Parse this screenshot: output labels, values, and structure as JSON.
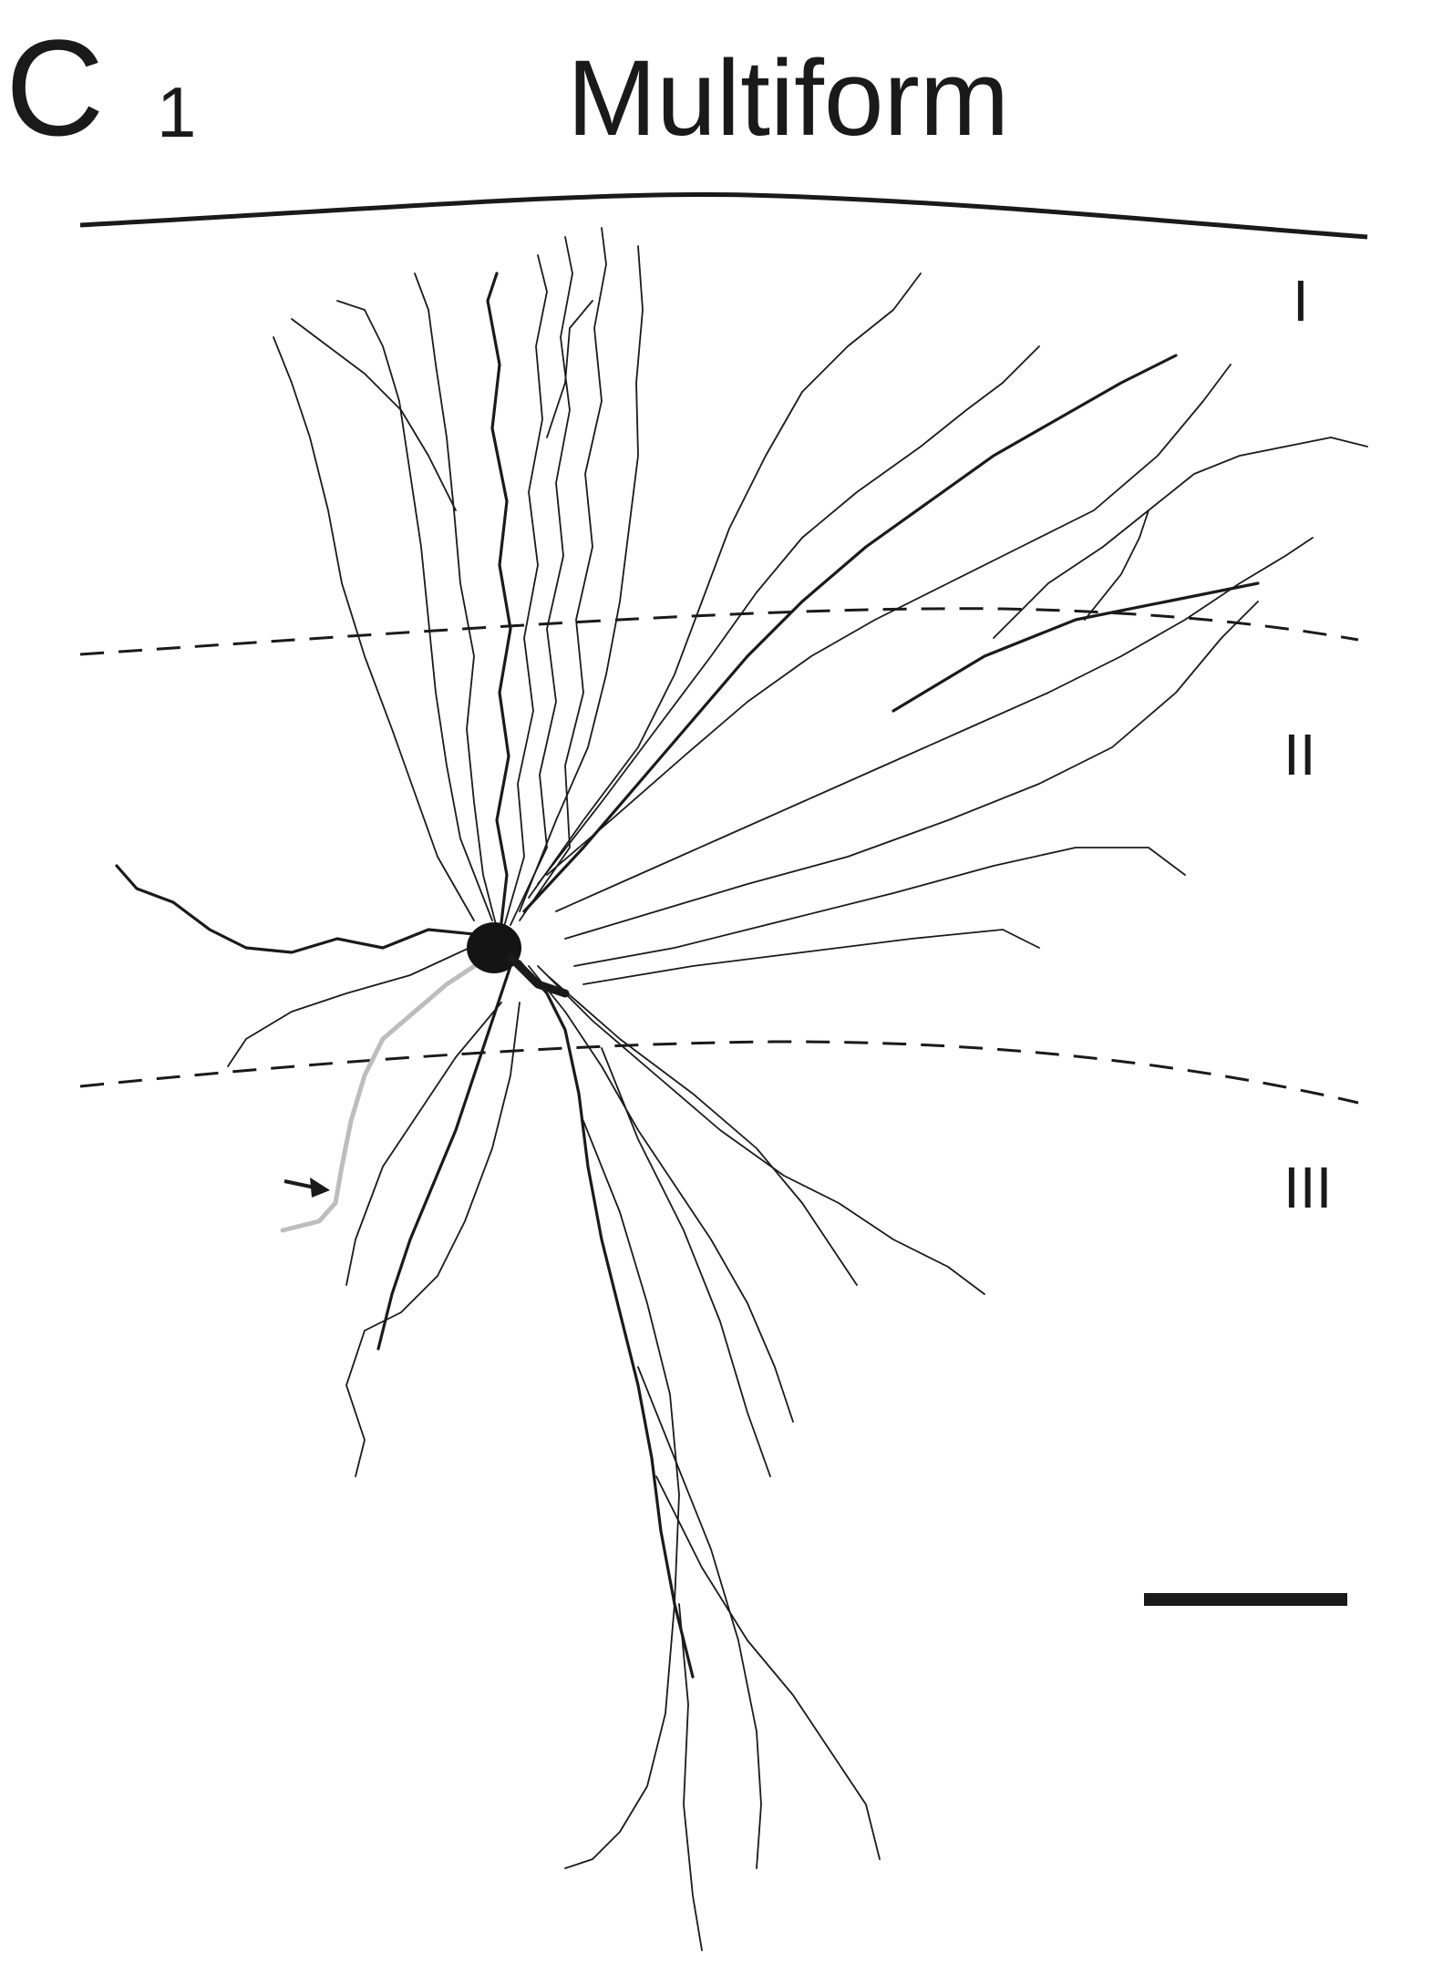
{
  "figure": {
    "panel_letter": "C",
    "panel_number": "1",
    "title": "Multiform",
    "layers": [
      "I",
      "II",
      "III"
    ]
  }
}
